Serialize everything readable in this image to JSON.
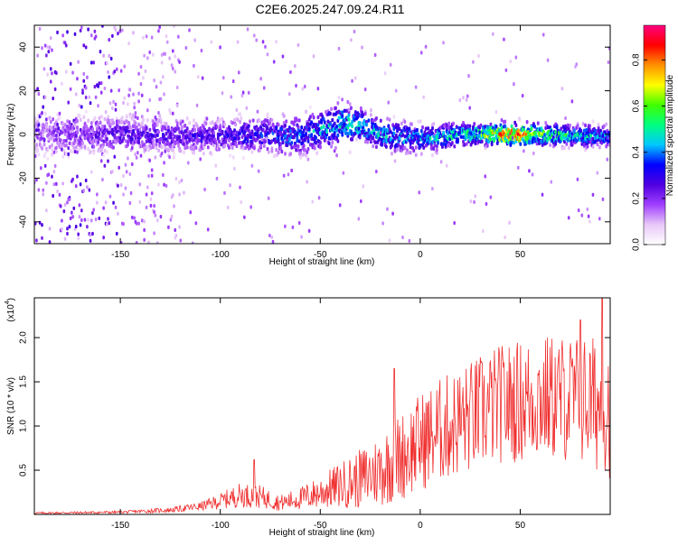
{
  "title": "C2E6.2025.247.09.24.R11",
  "chart_data": [
    {
      "type": "heatmap",
      "name": "spectrogram",
      "xlabel": "Height of straight line (km)",
      "ylabel": "Frequency (Hz)",
      "xlim": [
        -193,
        95
      ],
      "ylim": [
        -50,
        50
      ],
      "xticks": [
        -150,
        -100,
        -50,
        0,
        50
      ],
      "yticks": [
        -40,
        -20,
        0,
        20,
        40
      ],
      "colorbar": {
        "label": "Normalized spectral amplitude",
        "range": [
          0.0,
          0.95
        ],
        "ticks": [
          0.0,
          0.2,
          0.4,
          0.6,
          0.8
        ],
        "tick_labels": [
          "0.0",
          "0.2",
          "0.4",
          "0.6",
          "0.8"
        ],
        "colormap": [
          "#ffffff",
          "#e8c8f8",
          "#a040ff",
          "#5000e0",
          "#0000ff",
          "#00c8ff",
          "#00ff80",
          "#40ff00",
          "#ffff00",
          "#ff9000",
          "#ff0000",
          "#ff0080"
        ]
      },
      "band_center_hz": [
        [
          -193,
          0
        ],
        [
          -150,
          0
        ],
        [
          -110,
          -1
        ],
        [
          -80,
          0
        ],
        [
          -60,
          -1
        ],
        [
          -40,
          5
        ],
        [
          -30,
          4
        ],
        [
          -20,
          0
        ],
        [
          0,
          -2
        ],
        [
          20,
          0
        ],
        [
          40,
          0
        ],
        [
          60,
          0
        ],
        [
          95,
          -1
        ]
      ],
      "band_halfwidth_hz": [
        [
          -193,
          12
        ],
        [
          -150,
          9
        ],
        [
          -110,
          9
        ],
        [
          -80,
          10
        ],
        [
          -40,
          12
        ],
        [
          -25,
          9
        ],
        [
          0,
          8
        ],
        [
          30,
          6
        ],
        [
          60,
          6
        ],
        [
          95,
          6
        ]
      ],
      "peak_amplitude": [
        [
          -193,
          0.18
        ],
        [
          -150,
          0.28
        ],
        [
          -100,
          0.3
        ],
        [
          -60,
          0.42
        ],
        [
          -40,
          0.5
        ],
        [
          0,
          0.45
        ],
        [
          30,
          0.6
        ],
        [
          45,
          0.95
        ],
        [
          60,
          0.65
        ],
        [
          95,
          0.4
        ]
      ]
    },
    {
      "type": "line",
      "name": "snr",
      "xlabel": "Height of straight line (km)",
      "ylabel": "SNR (10 * v/v)",
      "y_scale_label": "(x10",
      "y_scale_exponent": "4",
      "xlim": [
        -193,
        95
      ],
      "ylim": [
        0,
        24500
      ],
      "xticks": [
        -150,
        -100,
        -50,
        0,
        50
      ],
      "yticks": [
        5000,
        10000,
        15000,
        20000
      ],
      "ytick_labels": [
        "0.5",
        "1.0",
        "1.5",
        "2.0"
      ],
      "color": "#f03030",
      "envelope_x": [
        -193,
        -150,
        -125,
        -110,
        -100,
        -90,
        -80,
        -70,
        -60,
        -50,
        -40,
        -30,
        -20,
        -10,
        0,
        10,
        20,
        30,
        40,
        50,
        60,
        70,
        80,
        95
      ],
      "envelope_mean": [
        150,
        250,
        500,
        900,
        1500,
        2200,
        2000,
        1300,
        1800,
        2500,
        3300,
        4000,
        5000,
        6500,
        8200,
        9500,
        10500,
        11500,
        12500,
        12800,
        13200,
        13200,
        13000,
        12000
      ],
      "envelope_amp": [
        120,
        150,
        300,
        500,
        900,
        1400,
        1300,
        900,
        1300,
        1900,
        2600,
        3400,
        4200,
        5000,
        5600,
        6000,
        6300,
        6600,
        6800,
        7000,
        7200,
        7300,
        7500,
        8000
      ],
      "highlight_peaks": [
        [
          -83,
          6200
        ],
        [
          -13,
          16500
        ],
        [
          80,
          22000
        ],
        [
          91,
          24500
        ]
      ]
    }
  ]
}
